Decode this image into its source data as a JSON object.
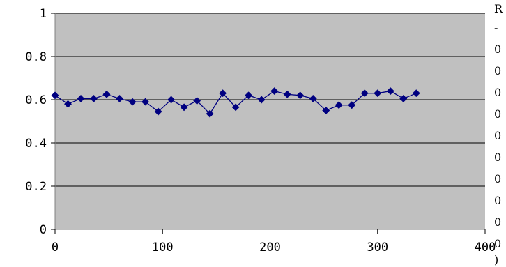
{
  "chart_data": {
    "type": "line",
    "title": "",
    "xlabel": "",
    "ylabel": "",
    "xlim": [
      0,
      400
    ],
    "ylim": [
      0,
      1
    ],
    "x_ticks": [
      "0",
      "100",
      "200",
      "300",
      "400"
    ],
    "y_ticks": [
      "0",
      "0.2",
      "0.4",
      "0.6",
      "0.8",
      "1"
    ],
    "grid": "horizontal major gridlines",
    "plot_background": "#c0c0c0",
    "series": [
      {
        "color": "#000080",
        "marker": "diamond",
        "x": [
          0,
          12,
          24,
          36,
          48,
          60,
          72,
          84,
          96,
          108,
          120,
          132,
          144,
          156,
          168,
          180,
          192,
          204,
          216,
          228,
          240,
          252,
          264,
          276,
          288,
          300,
          312,
          324,
          336
        ],
        "y": [
          0.62,
          0.58,
          0.605,
          0.605,
          0.625,
          0.605,
          0.59,
          0.59,
          0.545,
          0.6,
          0.565,
          0.595,
          0.535,
          0.63,
          0.565,
          0.62,
          0.6,
          0.64,
          0.625,
          0.62,
          0.605,
          0.55,
          0.575,
          0.575,
          0.63,
          0.63,
          0.64,
          0.605,
          0.63
        ]
      }
    ],
    "legend_clipped_text": [
      "R",
      "-",
      "0",
      "0",
      "0",
      "0",
      "0",
      "0",
      "0",
      "0",
      "0",
      "0",
      ")"
    ]
  }
}
